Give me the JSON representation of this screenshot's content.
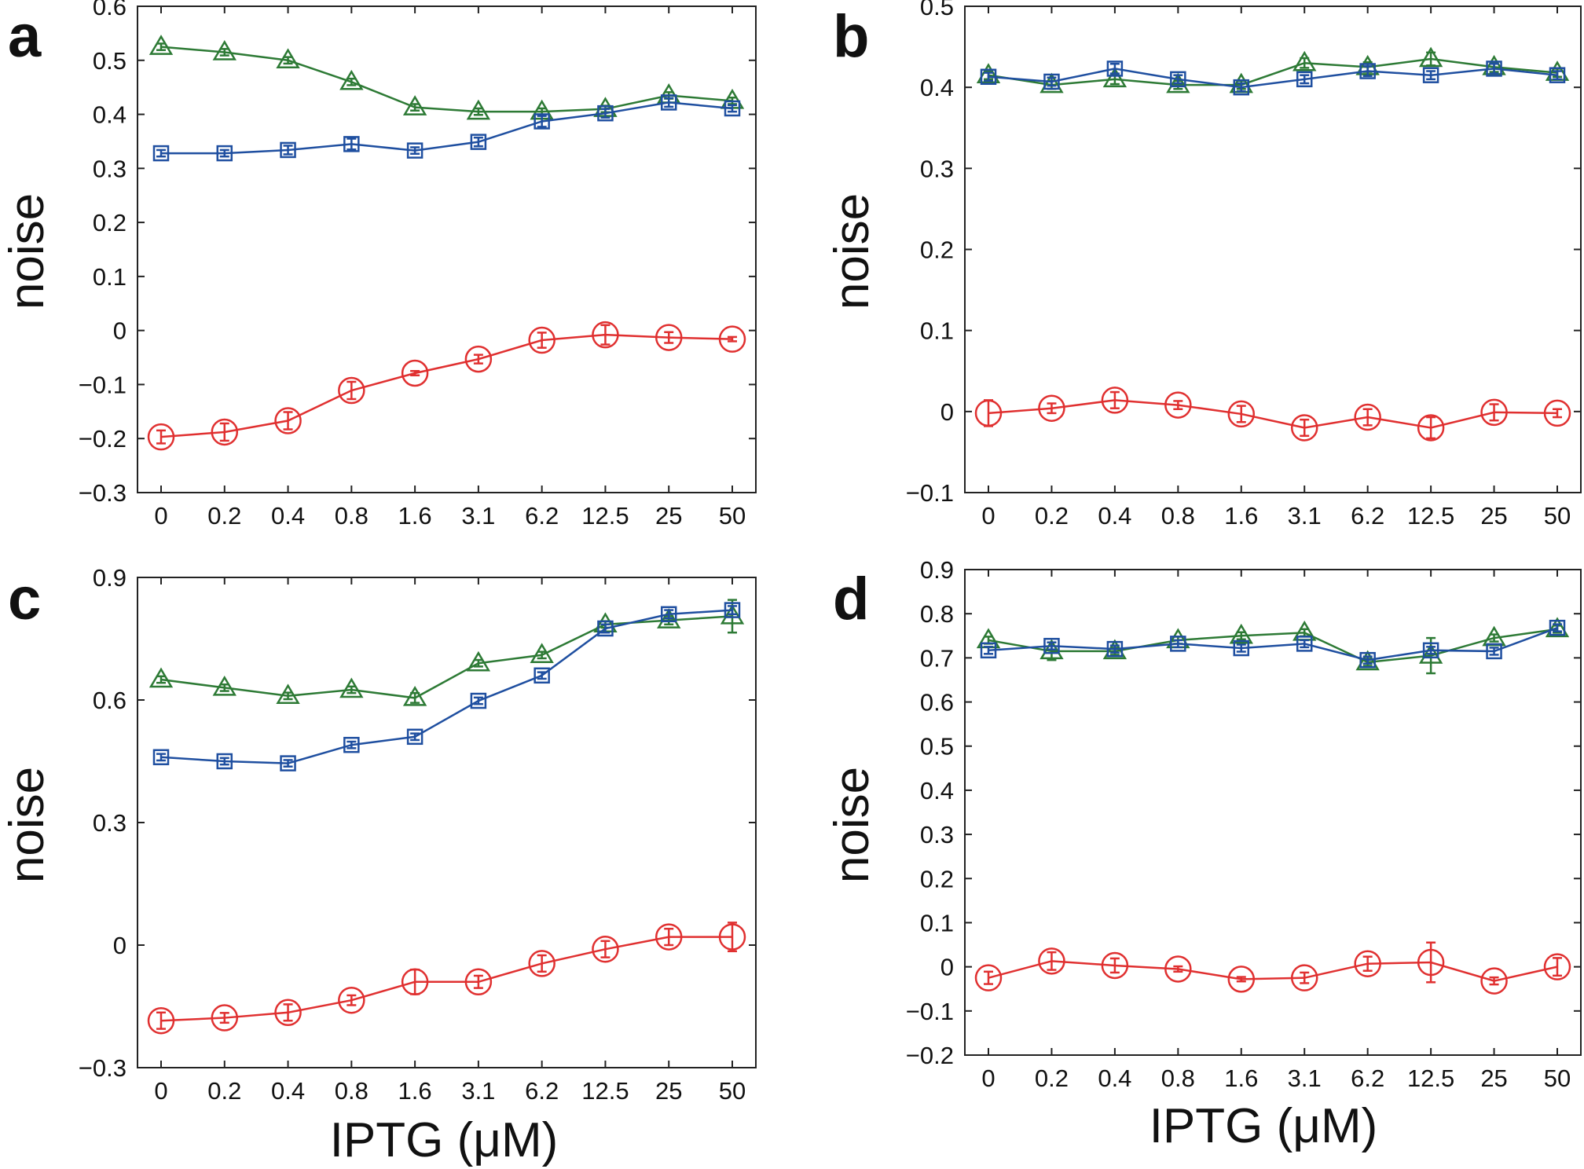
{
  "chart_data": [
    {
      "panel": "a",
      "type": "line",
      "ylabel": "noise",
      "xlabel": "",
      "categories": [
        "0",
        "0.2",
        "0.4",
        "0.8",
        "1.6",
        "3.1",
        "6.2",
        "12.5",
        "25",
        "50"
      ],
      "ylim": [
        -0.3,
        0.6
      ],
      "yticks": [
        -0.3,
        -0.2,
        -0.1,
        0,
        0.1,
        0.2,
        0.3,
        0.4,
        0.5,
        0.6
      ],
      "series": [
        {
          "color": "#2d7a35",
          "marker": "triangle",
          "values": [
            0.525,
            0.515,
            0.5,
            0.46,
            0.413,
            0.405,
            0.405,
            0.41,
            0.435,
            0.425
          ],
          "errors": [
            0.006,
            0.006,
            0.006,
            0.006,
            0.006,
            0.006,
            0.006,
            0.006,
            0.006,
            0.006
          ]
        },
        {
          "color": "#1f4fa0",
          "marker": "square",
          "values": [
            0.328,
            0.328,
            0.334,
            0.345,
            0.333,
            0.349,
            0.387,
            0.402,
            0.422,
            0.411
          ],
          "errors": [
            0.006,
            0.006,
            0.008,
            0.01,
            0.006,
            0.008,
            0.01,
            0.008,
            0.008,
            0.006
          ]
        },
        {
          "color": "#e03030",
          "marker": "circle",
          "values": [
            -0.197,
            -0.188,
            -0.167,
            -0.111,
            -0.079,
            -0.053,
            -0.018,
            -0.008,
            -0.013,
            -0.016
          ],
          "errors": [
            0.012,
            0.016,
            0.016,
            0.016,
            0.004,
            0.008,
            0.014,
            0.018,
            0.01,
            0.004
          ]
        }
      ]
    },
    {
      "panel": "b",
      "type": "line",
      "ylabel": "noise",
      "xlabel": "",
      "categories": [
        "0",
        "0.2",
        "0.4",
        "0.8",
        "1.6",
        "3.1",
        "6.2",
        "12.5",
        "25",
        "50"
      ],
      "ylim": [
        -0.1,
        0.5
      ],
      "yticks": [
        -0.1,
        0,
        0.1,
        0.2,
        0.3,
        0.4,
        0.5
      ],
      "series": [
        {
          "color": "#2d7a35",
          "marker": "triangle",
          "values": [
            0.415,
            0.403,
            0.41,
            0.403,
            0.403,
            0.43,
            0.425,
            0.435,
            0.425,
            0.418
          ],
          "errors": [
            0.005,
            0.005,
            0.006,
            0.005,
            0.005,
            0.006,
            0.006,
            0.008,
            0.006,
            0.005
          ]
        },
        {
          "color": "#1f4fa0",
          "marker": "square",
          "values": [
            0.413,
            0.407,
            0.423,
            0.41,
            0.4,
            0.41,
            0.42,
            0.415,
            0.423,
            0.415
          ],
          "errors": [
            0.005,
            0.005,
            0.006,
            0.005,
            0.005,
            0.005,
            0.006,
            0.005,
            0.006,
            0.005
          ]
        },
        {
          "color": "#e03030",
          "marker": "circle",
          "values": [
            -0.002,
            0.004,
            0.014,
            0.008,
            -0.003,
            -0.02,
            -0.007,
            -0.02,
            -0.001,
            -0.002
          ],
          "errors": [
            0.016,
            0.006,
            0.01,
            0.005,
            0.01,
            0.01,
            0.01,
            0.013,
            0.01,
            0.005
          ]
        }
      ]
    },
    {
      "panel": "c",
      "type": "line",
      "ylabel": "noise",
      "xlabel": "",
      "categories": [
        "0",
        "0.2",
        "0.4",
        "0.8",
        "1.6",
        "3.1",
        "6.2",
        "12.5",
        "25",
        "50"
      ],
      "ylim": [
        -0.3,
        0.9
      ],
      "yticks": [
        -0.3,
        0,
        0.3,
        0.6,
        0.9
      ],
      "series": [
        {
          "color": "#2d7a35",
          "marker": "triangle",
          "values": [
            0.65,
            0.63,
            0.61,
            0.625,
            0.605,
            0.69,
            0.71,
            0.785,
            0.795,
            0.805
          ],
          "errors": [
            0.008,
            0.008,
            0.008,
            0.008,
            0.012,
            0.008,
            0.008,
            0.008,
            0.01,
            0.04
          ]
        },
        {
          "color": "#1f4fa0",
          "marker": "square",
          "values": [
            0.46,
            0.45,
            0.445,
            0.49,
            0.51,
            0.598,
            0.66,
            0.775,
            0.81,
            0.82
          ],
          "errors": [
            0.008,
            0.008,
            0.008,
            0.008,
            0.008,
            0.008,
            0.008,
            0.01,
            0.01,
            0.01
          ]
        },
        {
          "color": "#e03030",
          "marker": "circle",
          "values": [
            -0.185,
            -0.178,
            -0.165,
            -0.135,
            -0.09,
            -0.09,
            -0.045,
            -0.01,
            0.02,
            0.02
          ],
          "errors": [
            0.02,
            0.012,
            0.02,
            0.012,
            0.03,
            0.015,
            0.02,
            0.02,
            0.02,
            0.035
          ]
        }
      ]
    },
    {
      "panel": "d",
      "type": "line",
      "ylabel": "noise",
      "xlabel": "IPTG (μM)",
      "categories": [
        "0",
        "0.2",
        "0.4",
        "0.8",
        "1.6",
        "3.1",
        "6.2",
        "12.5",
        "25",
        "50"
      ],
      "ylim": [
        -0.2,
        0.9
      ],
      "yticks": [
        -0.2,
        -0.1,
        0,
        0.1,
        0.2,
        0.3,
        0.4,
        0.5,
        0.6,
        0.7,
        0.8,
        0.9
      ],
      "series": [
        {
          "color": "#2d7a35",
          "marker": "triangle",
          "values": [
            0.74,
            0.715,
            0.715,
            0.74,
            0.75,
            0.757,
            0.69,
            0.705,
            0.745,
            0.765
          ],
          "errors": [
            0.008,
            0.02,
            0.008,
            0.008,
            0.008,
            0.008,
            0.008,
            0.04,
            0.008,
            0.008
          ]
        },
        {
          "color": "#1f4fa0",
          "marker": "square",
          "values": [
            0.717,
            0.727,
            0.72,
            0.732,
            0.722,
            0.732,
            0.695,
            0.717,
            0.715,
            0.768
          ],
          "errors": [
            0.008,
            0.008,
            0.008,
            0.008,
            0.008,
            0.008,
            0.008,
            0.008,
            0.008,
            0.008
          ]
        },
        {
          "color": "#e03030",
          "marker": "circle",
          "values": [
            -0.025,
            0.013,
            0.003,
            -0.005,
            -0.028,
            -0.025,
            0.007,
            0.01,
            -0.032,
            0.0
          ],
          "errors": [
            0.014,
            0.02,
            0.016,
            0.006,
            0.005,
            0.012,
            0.016,
            0.045,
            0.008,
            0.02
          ]
        }
      ]
    }
  ],
  "x_axis_title": "IPTG (μM)"
}
